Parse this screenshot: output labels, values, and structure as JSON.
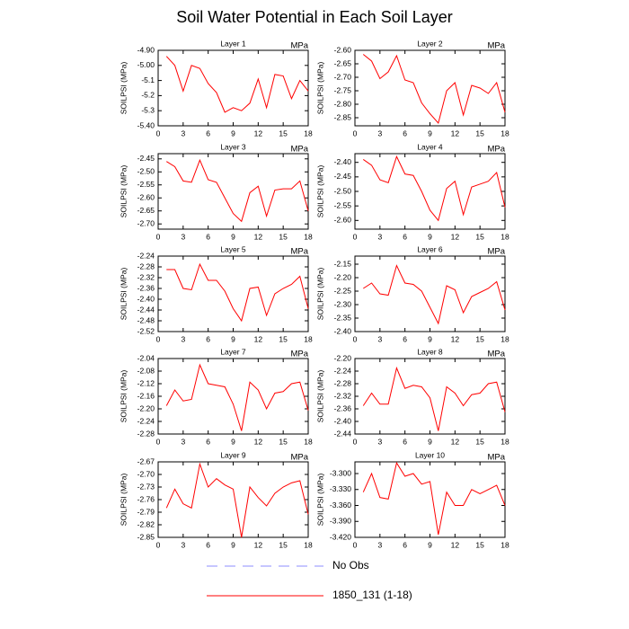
{
  "title": "Soil Water Potential in Each Soil Layer",
  "legend": [
    {
      "name": "No Obs",
      "color": "#8c8cff",
      "dash": true
    },
    {
      "name": "1850_131 (1-18)",
      "color": "#ff0000",
      "dash": false
    }
  ],
  "chart_data": [
    {
      "type": "line",
      "title": "Layer 1",
      "units": "MPa",
      "ylabel": "SOILPSI  (MPa)",
      "color": "#ff0000",
      "x": [
        1,
        2,
        3,
        4,
        5,
        6,
        7,
        8,
        9,
        10,
        11,
        12,
        13,
        14,
        15,
        16,
        17,
        18
      ],
      "values": [
        -4.94,
        -5.0,
        -5.17,
        -5.0,
        -5.02,
        -5.12,
        -5.18,
        -5.31,
        -5.28,
        -5.3,
        -5.25,
        -5.09,
        -5.28,
        -5.06,
        -5.07,
        -5.22,
        -5.1,
        -5.17
      ],
      "xlim": [
        0,
        18
      ],
      "xticks": [
        0,
        3,
        6,
        9,
        12,
        15,
        18
      ],
      "ylim": [
        -5.4,
        -4.9
      ],
      "yticks": [
        {
          "value": -4.9,
          "label": "-4.90"
        },
        {
          "value": -5.0,
          "label": "-5.00"
        },
        -5.1,
        -5.2,
        -5.3,
        {
          "value": -5.4,
          "label": "-5.40"
        }
      ]
    },
    {
      "type": "line",
      "title": "Layer 2",
      "units": "MPa",
      "ylabel": "SOILPSI  (MPa)",
      "color": "#ff0000",
      "x": [
        1,
        2,
        3,
        4,
        5,
        6,
        7,
        8,
        9,
        10,
        11,
        12,
        13,
        14,
        15,
        16,
        17,
        18
      ],
      "values": [
        -2.615,
        -2.64,
        -2.705,
        -2.68,
        -2.62,
        -2.71,
        -2.72,
        -2.795,
        -2.835,
        -2.87,
        -2.75,
        -2.72,
        -2.84,
        -2.73,
        -2.74,
        -2.76,
        -2.72,
        -2.83
      ],
      "xlim": [
        0,
        18
      ],
      "xticks": [
        0,
        3,
        6,
        9,
        12,
        15,
        18
      ],
      "ylim": [
        -2.88,
        -2.6
      ],
      "yticks": [
        {
          "value": -2.6,
          "label": "-2.60"
        },
        -2.65,
        {
          "value": -2.7,
          "label": "-2.70"
        },
        -2.75,
        {
          "value": -2.8,
          "label": "-2.80"
        },
        -2.85
      ]
    },
    {
      "type": "line",
      "title": "Layer 3",
      "units": "MPa",
      "ylabel": "SOILPSI  (MPa)",
      "color": "#ff0000",
      "x": [
        1,
        2,
        3,
        4,
        5,
        6,
        7,
        8,
        9,
        10,
        11,
        12,
        13,
        14,
        15,
        16,
        17,
        18
      ],
      "values": [
        -2.46,
        -2.48,
        -2.535,
        -2.54,
        -2.455,
        -2.53,
        -2.54,
        -2.6,
        -2.66,
        -2.69,
        -2.58,
        -2.555,
        -2.67,
        -2.57,
        -2.565,
        -2.565,
        -2.535,
        -2.65
      ],
      "xlim": [
        0,
        18
      ],
      "xticks": [
        0,
        3,
        6,
        9,
        12,
        15,
        18
      ],
      "ylim": [
        -2.72,
        -2.43
      ],
      "yticks": [
        -2.45,
        {
          "value": -2.5,
          "label": "-2.50"
        },
        -2.55,
        {
          "value": -2.6,
          "label": "-2.60"
        },
        -2.65,
        {
          "value": -2.7,
          "label": "-2.70"
        }
      ]
    },
    {
      "type": "line",
      "title": "Layer 4",
      "units": "MPa",
      "ylabel": "SOILPSI  (MPa)",
      "color": "#ff0000",
      "x": [
        1,
        2,
        3,
        4,
        5,
        6,
        7,
        8,
        9,
        10,
        11,
        12,
        13,
        14,
        15,
        16,
        17,
        18
      ],
      "values": [
        -2.39,
        -2.41,
        -2.46,
        -2.47,
        -2.38,
        -2.44,
        -2.445,
        -2.5,
        -2.565,
        -2.6,
        -2.49,
        -2.465,
        -2.58,
        -2.485,
        -2.475,
        -2.465,
        -2.435,
        -2.555
      ],
      "xlim": [
        0,
        18
      ],
      "xticks": [
        0,
        3,
        6,
        9,
        12,
        15,
        18
      ],
      "ylim": [
        -2.63,
        -2.37
      ],
      "yticks": [
        {
          "value": -2.4,
          "label": "-2.40"
        },
        -2.45,
        {
          "value": -2.5,
          "label": "-2.50"
        },
        -2.55,
        {
          "value": -2.6,
          "label": "-2.60"
        }
      ]
    },
    {
      "type": "line",
      "title": "Layer 5",
      "units": "MPa",
      "ylabel": "SOILPSI  (MPa)",
      "color": "#ff0000",
      "x": [
        1,
        2,
        3,
        4,
        5,
        6,
        7,
        8,
        9,
        10,
        11,
        12,
        13,
        14,
        15,
        16,
        17,
        18
      ],
      "values": [
        -2.29,
        -2.29,
        -2.36,
        -2.365,
        -2.27,
        -2.33,
        -2.33,
        -2.37,
        -2.435,
        -2.48,
        -2.36,
        -2.355,
        -2.46,
        -2.38,
        -2.36,
        -2.345,
        -2.315,
        -2.435
      ],
      "xlim": [
        0,
        18
      ],
      "xticks": [
        0,
        3,
        6,
        9,
        12,
        15,
        18
      ],
      "ylim": [
        -2.52,
        -2.24
      ],
      "yticks": [
        -2.24,
        -2.28,
        -2.32,
        -2.36,
        {
          "value": -2.4,
          "label": "-2.40"
        },
        -2.44,
        -2.48,
        -2.52
      ]
    },
    {
      "type": "line",
      "title": "Layer 6",
      "units": "MPa",
      "ylabel": "SOILPSI  (MPa)",
      "color": "#ff0000",
      "x": [
        1,
        2,
        3,
        4,
        5,
        6,
        7,
        8,
        9,
        10,
        11,
        12,
        13,
        14,
        15,
        16,
        17,
        18
      ],
      "values": [
        -2.24,
        -2.22,
        -2.26,
        -2.265,
        -2.155,
        -2.22,
        -2.225,
        -2.25,
        -2.31,
        -2.37,
        -2.23,
        -2.245,
        -2.33,
        -2.27,
        -2.255,
        -2.24,
        -2.215,
        -2.32
      ],
      "xlim": [
        0,
        18
      ],
      "xticks": [
        0,
        3,
        6,
        9,
        12,
        15,
        18
      ],
      "ylim": [
        -2.4,
        -2.12
      ],
      "yticks": [
        -2.15,
        {
          "value": -2.2,
          "label": "-2.20"
        },
        -2.25,
        {
          "value": -2.3,
          "label": "-2.30"
        },
        -2.35,
        {
          "value": -2.4,
          "label": "-2.40"
        }
      ]
    },
    {
      "type": "line",
      "title": "Layer 7",
      "units": "MPa",
      "ylabel": "SOILPSI  (MPa)",
      "color": "#ff0000",
      "x": [
        1,
        2,
        3,
        4,
        5,
        6,
        7,
        8,
        9,
        10,
        11,
        12,
        13,
        14,
        15,
        16,
        17,
        18
      ],
      "values": [
        -2.19,
        -2.14,
        -2.175,
        -2.17,
        -2.06,
        -2.12,
        -2.125,
        -2.13,
        -2.185,
        -2.27,
        -2.115,
        -2.14,
        -2.2,
        -2.15,
        -2.145,
        -2.12,
        -2.115,
        -2.205
      ],
      "xlim": [
        0,
        18
      ],
      "xticks": [
        0,
        3,
        6,
        9,
        12,
        15,
        18
      ],
      "ylim": [
        -2.28,
        -2.04
      ],
      "yticks": [
        -2.04,
        -2.08,
        -2.12,
        -2.16,
        {
          "value": -2.2,
          "label": "-2.20"
        },
        -2.24,
        -2.28
      ]
    },
    {
      "type": "line",
      "title": "Layer 8",
      "units": "MPa",
      "ylabel": "SOILPSI  (MPa)",
      "color": "#ff0000",
      "x": [
        1,
        2,
        3,
        4,
        5,
        6,
        7,
        8,
        9,
        10,
        11,
        12,
        13,
        14,
        15,
        16,
        17,
        18
      ],
      "values": [
        -2.35,
        -2.31,
        -2.345,
        -2.345,
        -2.23,
        -2.295,
        -2.285,
        -2.29,
        -2.325,
        -2.43,
        -2.29,
        -2.31,
        -2.35,
        -2.315,
        -2.31,
        -2.28,
        -2.275,
        -2.37
      ],
      "xlim": [
        0,
        18
      ],
      "xticks": [
        0,
        3,
        6,
        9,
        12,
        15,
        18
      ],
      "ylim": [
        -2.44,
        -2.2
      ],
      "yticks": [
        {
          "value": -2.2,
          "label": "-2.20"
        },
        -2.24,
        -2.28,
        -2.32,
        -2.36,
        {
          "value": -2.4,
          "label": "-2.40"
        },
        -2.44
      ]
    },
    {
      "type": "line",
      "title": "Layer 9",
      "units": "MPa",
      "ylabel": "SOILPSI  (MPa)",
      "color": "#ff0000",
      "x": [
        1,
        2,
        3,
        4,
        5,
        6,
        7,
        8,
        9,
        10,
        11,
        12,
        13,
        14,
        15,
        16,
        17,
        18
      ],
      "values": [
        -2.78,
        -2.735,
        -2.77,
        -2.78,
        -2.675,
        -2.73,
        -2.71,
        -2.725,
        -2.735,
        -2.85,
        -2.73,
        -2.755,
        -2.775,
        -2.745,
        -2.73,
        -2.72,
        -2.715,
        -2.795
      ],
      "xlim": [
        0,
        18
      ],
      "xticks": [
        0,
        3,
        6,
        9,
        12,
        15,
        18
      ],
      "ylim": [
        -2.85,
        -2.67
      ],
      "yticks": [
        -2.67,
        {
          "value": -2.7,
          "label": "-2.70"
        },
        -2.73,
        -2.76,
        -2.79,
        -2.82,
        -2.85
      ]
    },
    {
      "type": "line",
      "title": "Layer 10",
      "units": "MPa",
      "ylabel": "SOILPSI  (MPa)",
      "color": "#ff0000",
      "x": [
        1,
        2,
        3,
        4,
        5,
        6,
        7,
        8,
        9,
        10,
        11,
        12,
        13,
        14,
        15,
        16,
        17,
        18
      ],
      "values": [
        -3.335,
        -3.3,
        -3.345,
        -3.348,
        -3.28,
        -3.305,
        -3.3,
        -3.32,
        -3.315,
        -3.415,
        -3.335,
        -3.36,
        -3.36,
        -3.33,
        -3.338,
        -3.33,
        -3.322,
        -3.36
      ],
      "xlim": [
        0,
        18
      ],
      "xticks": [
        0,
        3,
        6,
        9,
        12,
        15,
        18
      ],
      "ylim": [
        -3.42,
        -3.278
      ],
      "yticks": [
        {
          "value": -3.3,
          "label": "-3.300"
        },
        {
          "value": -3.33,
          "label": "-3.330"
        },
        {
          "value": -3.36,
          "label": "-3.360"
        },
        {
          "value": -3.39,
          "label": "-3.390"
        },
        {
          "value": -3.42,
          "label": "-3.420"
        }
      ]
    }
  ]
}
